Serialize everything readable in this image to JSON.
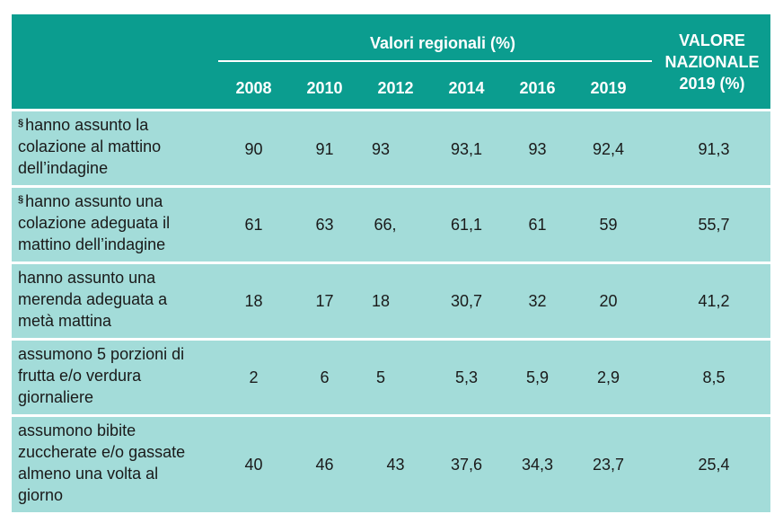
{
  "table": {
    "group_header": "Valori regionali (%)",
    "years": [
      "2008",
      "2010",
      "2012",
      "2014",
      "2016",
      "2019"
    ],
    "national_header": [
      "VALORE",
      "NAZIONALE",
      "2019 (%)"
    ],
    "rows": [
      {
        "marker": "§",
        "label_lines": [
          "hanno assunto la",
          "colazione al mattino",
          "dell’indagine"
        ],
        "values": [
          "90",
          "91",
          "93",
          "93,1",
          "93",
          "92,4"
        ],
        "national": "91,3"
      },
      {
        "marker": "§",
        "label_lines": [
          "hanno assunto una",
          "colazione adeguata il",
          "mattino dell’indagine"
        ],
        "values": [
          "61",
          "63",
          "66,",
          "61,1",
          "61",
          "59"
        ],
        "national": "55,7"
      },
      {
        "marker": "",
        "label_lines": [
          "hanno assunto una",
          "merenda adeguata a",
          "metà mattina"
        ],
        "values": [
          "18",
          "17",
          "18",
          "30,7",
          "32",
          "20"
        ],
        "national": "41,2"
      },
      {
        "marker": "",
        "label_lines": [
          "assumono 5 porzioni di",
          "frutta e/o verdura",
          "giornaliere"
        ],
        "values": [
          "2",
          "6",
          "5",
          "5,3",
          "5,9",
          "2,9"
        ],
        "national": "8,5"
      },
      {
        "marker": "",
        "label_lines": [
          "assumono bibite",
          "zuccherate e/o gassate",
          "almeno una volta al",
          "giorno"
        ],
        "values": [
          "40",
          "46",
          "43",
          "37,6",
          "34,3",
          "23,7"
        ],
        "national": "25,4"
      }
    ]
  }
}
